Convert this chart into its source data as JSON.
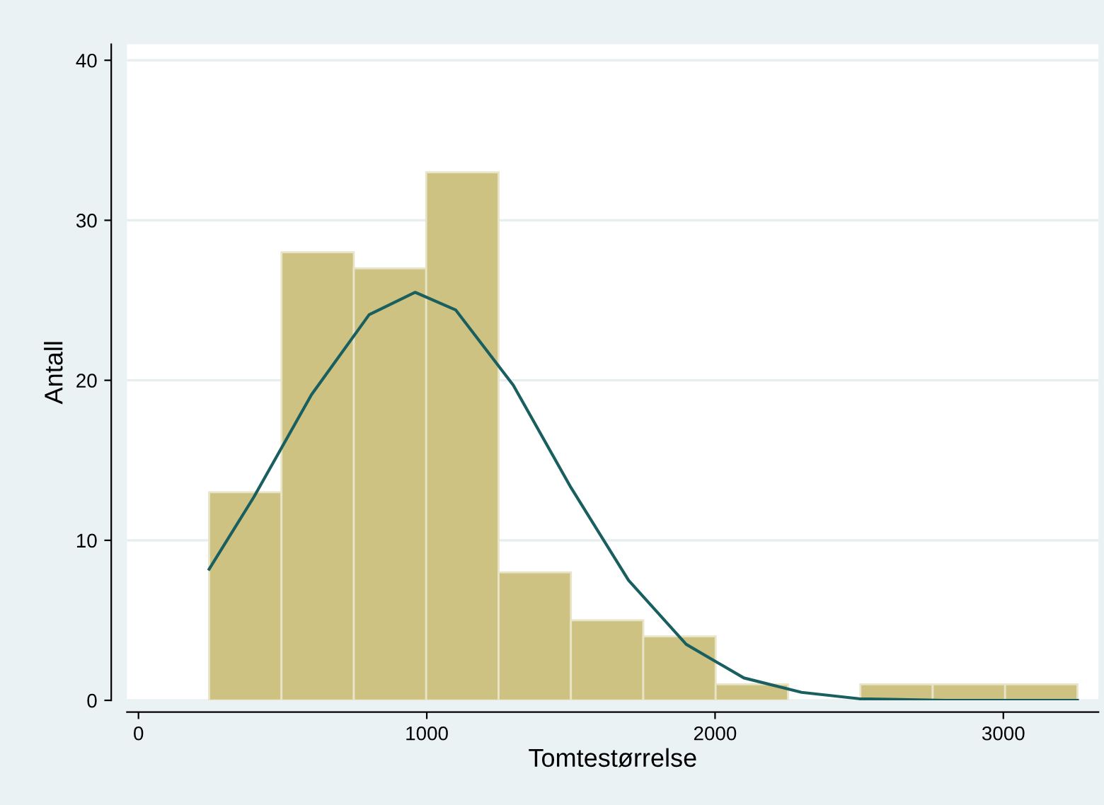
{
  "chart_data": {
    "type": "histogram",
    "xlabel": "Tomtestørrelse",
    "ylabel": "Antall",
    "xlim": [
      -40,
      3330
    ],
    "xticks": [
      0,
      1000,
      2000,
      3000
    ],
    "ylim": [
      0,
      41
    ],
    "yticks": [
      0,
      10,
      20,
      30,
      40
    ],
    "grid": "y",
    "series": [
      {
        "color": "#cdc282",
        "bins": [
          245,
          496,
          747,
          998,
          1249,
          1500,
          1751,
          2002,
          2253,
          2504,
          2755,
          3006,
          3257
        ],
        "values": [
          13,
          28,
          27,
          33,
          8,
          5,
          4,
          1,
          0,
          1,
          1,
          1
        ]
      },
      {
        "type": "line",
        "color": "#1a5f5f",
        "x": [
          245,
          400,
          600,
          800,
          960,
          1100,
          1300,
          1500,
          1700,
          1900,
          2100,
          2300,
          2500,
          2800,
          3257
        ],
        "values": [
          8.2,
          12.7,
          19.1,
          24.1,
          25.5,
          24.4,
          19.7,
          13.3,
          7.5,
          3.5,
          1.4,
          0.5,
          0.1,
          0,
          0
        ]
      }
    ]
  }
}
